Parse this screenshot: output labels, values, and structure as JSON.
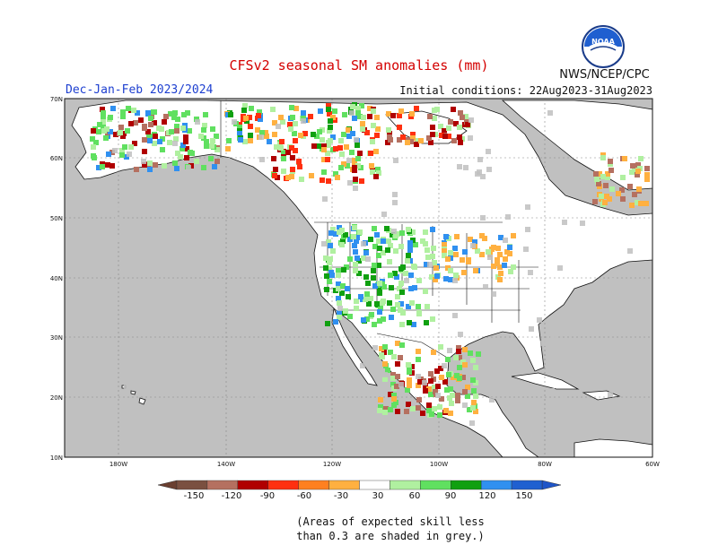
{
  "header": {
    "title": "CFSv2 seasonal SM anomalies (mm)",
    "season": "Dec-Jan-Feb 2023/2024",
    "initial_conditions": "Initial conditions: 22Aug2023-31Aug2023",
    "credit": "NWS/NCEP/CPC",
    "logo_text": "NOAA"
  },
  "map": {
    "lat_labels": [
      "70N",
      "60N",
      "50N",
      "40N",
      "30N",
      "20N",
      "10N"
    ],
    "lon_labels": [
      "180W",
      "140W",
      "120W",
      "100W",
      "80W",
      "60W"
    ],
    "colors": {
      "ocean_unskilled": "#c0c0c0",
      "land_neutral": "#ffffff",
      "dry_150": "#7a5040",
      "dry_120": "#b57060",
      "dry_90": "#b00000",
      "dry_60": "#ff3010",
      "dry_30": "#ffb040",
      "wet_30": "#b0f0a0",
      "wet_60": "#60e060",
      "wet_90": "#10a010",
      "wet_120": "#3090f0",
      "wet_150": "#2060d0"
    }
  },
  "colorbar": {
    "labels": [
      "-150",
      "-120",
      "-90",
      "-60",
      "-30",
      "30",
      "60",
      "90",
      "120",
      "150"
    ],
    "colors": [
      "#7a5040",
      "#b57060",
      "#b00000",
      "#ff3010",
      "#ff8020",
      "#ffb040",
      "#ffffff",
      "#b0f0a0",
      "#60e060",
      "#10a010",
      "#3090f0",
      "#2060d0"
    ]
  },
  "note": {
    "line1": "(Areas of expected skill less",
    "line2": "than 0.3 are shaded in grey.)"
  }
}
